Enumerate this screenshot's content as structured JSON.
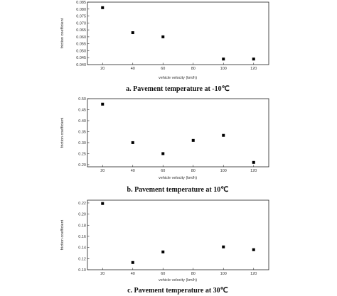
{
  "chart_data": [
    {
      "type": "scatter",
      "caption": "a. Pavement temperature at -10℃",
      "xlabel": "vehicle velocity (km/h)",
      "ylabel": "friction coefficient",
      "x_ticks": [
        20,
        40,
        60,
        80,
        100,
        120
      ],
      "y_ticks": [
        "0.040",
        "0.045",
        "0.050",
        "0.055",
        "0.060",
        "0.065",
        "0.070",
        "0.075",
        "0.080",
        "0.085"
      ],
      "xlim": [
        10,
        130
      ],
      "ylim": [
        0.04,
        0.085
      ],
      "x": [
        20,
        40,
        60,
        100,
        120
      ],
      "y": [
        0.081,
        0.063,
        0.06,
        0.044,
        0.044
      ]
    },
    {
      "type": "scatter",
      "caption": "b. Pavement temperature at 10℃",
      "xlabel": "vehicle velocity (km/h)",
      "ylabel": "friction coefficient",
      "x_ticks": [
        20,
        40,
        60,
        80,
        100,
        120
      ],
      "y_ticks": [
        "0.20",
        "0.25",
        "0.30",
        "0.35",
        "0.40",
        "0.45",
        "0.50"
      ],
      "xlim": [
        10,
        130
      ],
      "ylim": [
        0.19,
        0.5
      ],
      "x": [
        20,
        40,
        60,
        80,
        100,
        120
      ],
      "y": [
        0.475,
        0.3,
        0.25,
        0.31,
        0.333,
        0.21
      ]
    },
    {
      "type": "scatter",
      "caption": "c. Pavement temperature at 30℃",
      "xlabel": "vehicle velocity (km/h)",
      "ylabel": "friction coefficient",
      "x_ticks": [
        20,
        40,
        60,
        80,
        100,
        120
      ],
      "y_ticks": [
        "0.10",
        "0.12",
        "0.14",
        "0.16",
        "0.18",
        "0.20",
        "0.22"
      ],
      "xlim": [
        10,
        130
      ],
      "ylim": [
        0.1,
        0.225
      ],
      "x": [
        20,
        40,
        60,
        100,
        120
      ],
      "y": [
        0.219,
        0.113,
        0.132,
        0.141,
        0.136
      ]
    }
  ]
}
